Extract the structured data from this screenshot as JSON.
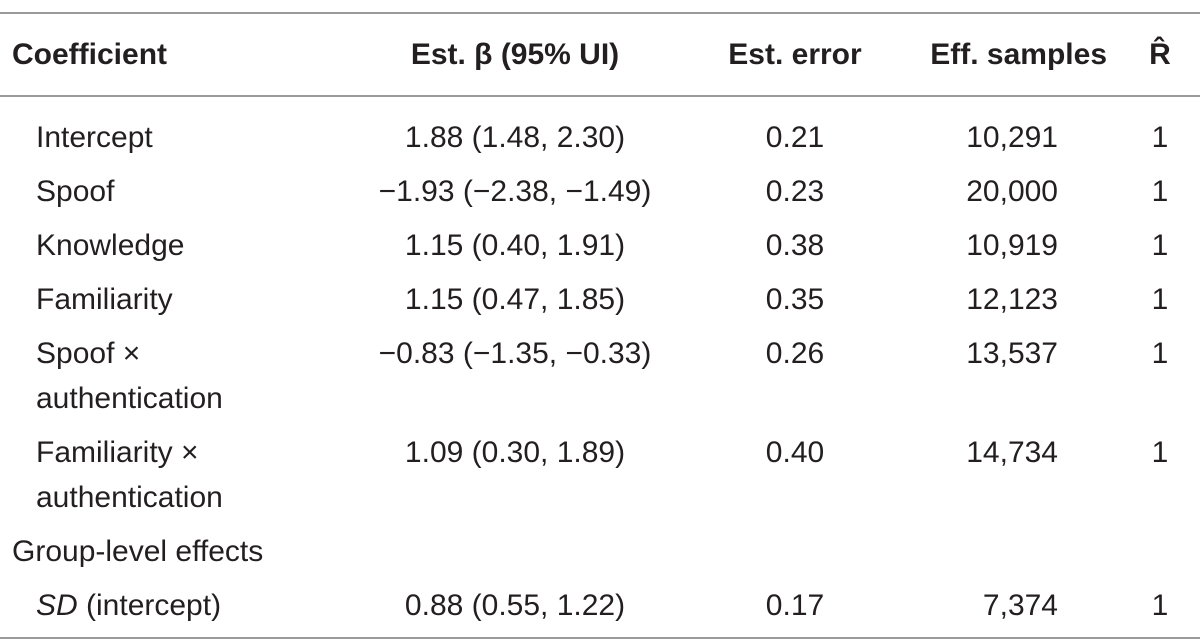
{
  "table": {
    "header": [
      "Coefficient",
      "Est. β (95% UI)",
      "Est. error",
      "Eff. samples",
      "R̂"
    ],
    "rows": [
      [
        "Intercept",
        "1.88 (1.48, 2.30)",
        "0.21",
        "10,291",
        "1"
      ],
      [
        "Spoof",
        "−1.93 (−2.38, −1.49)",
        "0.23",
        "20,000",
        "1"
      ],
      [
        "Knowledge",
        "1.15 (0.40, 1.91)",
        "0.38",
        "10,919",
        "1"
      ],
      [
        "Familiarity",
        "1.15 (0.47, 1.85)",
        "0.35",
        "12,123",
        "1"
      ],
      [
        "Spoof × authentication",
        "−0.83 (−1.35, −0.33)",
        "0.26",
        "13,537",
        "1"
      ],
      [
        "Familiarity × authentication",
        "1.09 (0.30, 1.89)",
        "0.40",
        "14,734",
        "1"
      ]
    ],
    "group_label": "Group-level effects",
    "group_rows": [
      [
        [
          "SD",
          " (intercept)"
        ],
        "0.88 (0.55, 1.22)",
        "0.17",
        "7,374",
        "1"
      ]
    ]
  }
}
